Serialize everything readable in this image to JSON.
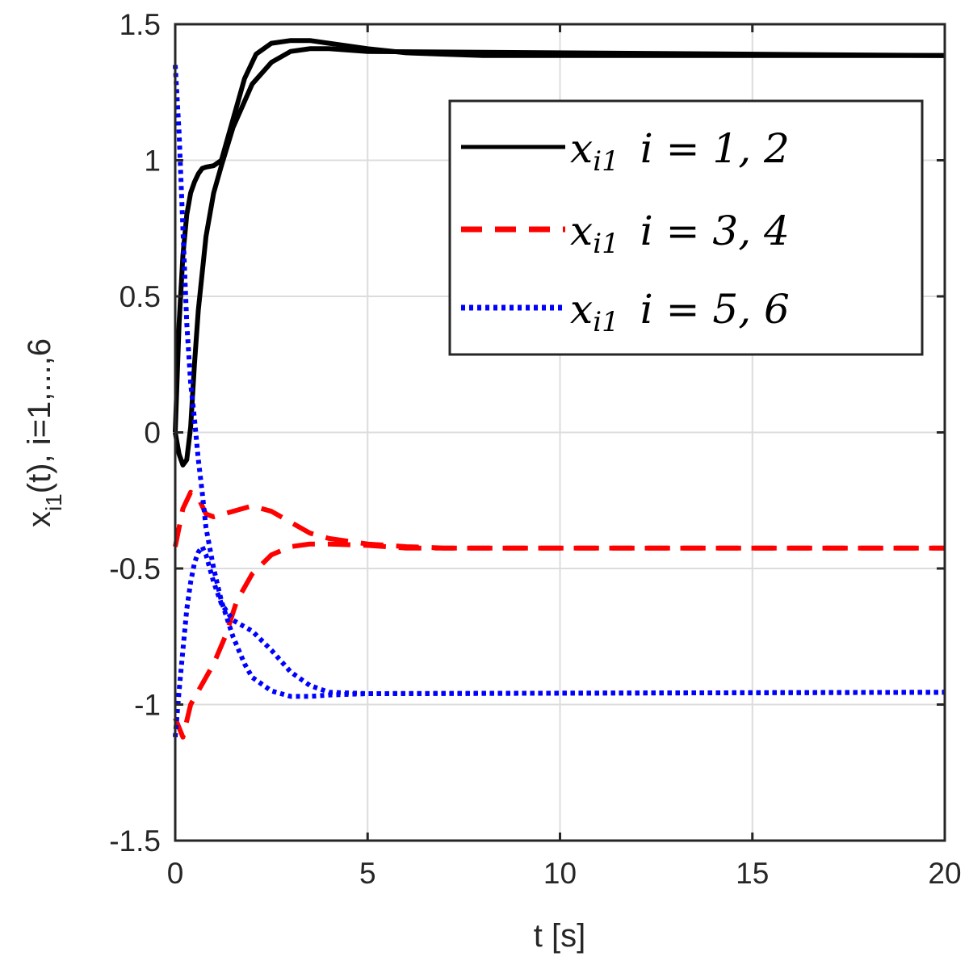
{
  "chart_data": {
    "type": "line",
    "title": "",
    "xlabel": "t [s]",
    "ylabel_main": "x",
    "ylabel_sub": "i1",
    "ylabel_rest": "(t), i=1,...,6",
    "xlim": [
      0,
      20
    ],
    "ylim": [
      -1.5,
      1.5
    ],
    "xticks": [
      0,
      5,
      10,
      15,
      20
    ],
    "xtick_labels": [
      "0",
      "5",
      "10",
      "15",
      "20"
    ],
    "yticks": [
      -1.5,
      -1,
      -0.5,
      0,
      0.5,
      1,
      1.5
    ],
    "ytick_labels": [
      "-1.5",
      "-1",
      "-0.5",
      "0",
      "0.5",
      "1",
      "1.5"
    ],
    "grid": true,
    "legend_position": "top-right",
    "legend": [
      {
        "var": "x",
        "sub": "i1",
        "label_rest": "i = 1, 2",
        "color": "#000000",
        "style": "solid"
      },
      {
        "var": "x",
        "sub": "i1",
        "label_rest": "i = 3, 4",
        "color": "#ff0000",
        "style": "dashed"
      },
      {
        "var": "x",
        "sub": "i1",
        "label_rest": "i = 5, 6",
        "color": "#0000ff",
        "style": "dotted"
      }
    ],
    "series": [
      {
        "group": 0,
        "color": "#000000",
        "style": "solid",
        "x": [
          0,
          0.1,
          0.2,
          0.3,
          0.4,
          0.5,
          0.6,
          0.7,
          0.8,
          1.0,
          1.2,
          1.5,
          1.8,
          2.1,
          2.5,
          3.0,
          3.5,
          4.0,
          5.0,
          6.0,
          7.0,
          8.0,
          10.0,
          20.0
        ],
        "y": [
          0,
          0.4,
          0.65,
          0.8,
          0.88,
          0.92,
          0.95,
          0.97,
          0.975,
          0.98,
          1.0,
          1.15,
          1.3,
          1.39,
          1.43,
          1.44,
          1.44,
          1.43,
          1.41,
          1.395,
          1.39,
          1.385,
          1.385,
          1.385
        ]
      },
      {
        "group": 0,
        "color": "#000000",
        "style": "solid",
        "x": [
          0,
          0.1,
          0.2,
          0.3,
          0.4,
          0.5,
          0.6,
          0.8,
          1.0,
          1.2,
          1.5,
          2.0,
          2.5,
          3.0,
          3.5,
          4.0,
          5.0,
          20.0
        ],
        "y": [
          0,
          -0.08,
          -0.12,
          -0.1,
          0.02,
          0.25,
          0.45,
          0.72,
          0.88,
          0.98,
          1.12,
          1.28,
          1.36,
          1.4,
          1.41,
          1.41,
          1.4,
          1.385
        ]
      },
      {
        "group": 1,
        "color": "#ff0000",
        "style": "dashed",
        "x": [
          0,
          0.2,
          0.4,
          0.6,
          0.8,
          1.0,
          1.5,
          2.0,
          2.5,
          3.0,
          3.5,
          4.0,
          5.0,
          6.0,
          7.0,
          8.0,
          20.0
        ],
        "y": [
          -0.42,
          -0.28,
          -0.22,
          -0.24,
          -0.3,
          -0.31,
          -0.29,
          -0.27,
          -0.29,
          -0.33,
          -0.37,
          -0.39,
          -0.41,
          -0.42,
          -0.425,
          -0.425,
          -0.425
        ]
      },
      {
        "group": 1,
        "color": "#ff0000",
        "style": "dashed",
        "x": [
          0,
          0.2,
          0.4,
          0.6,
          0.8,
          1.0,
          1.3,
          1.6,
          2.0,
          2.5,
          3.0,
          3.5,
          4.0,
          5.0,
          6.0,
          20.0
        ],
        "y": [
          -1.05,
          -1.12,
          -1.0,
          -0.95,
          -0.9,
          -0.85,
          -0.75,
          -0.62,
          -0.52,
          -0.45,
          -0.42,
          -0.41,
          -0.41,
          -0.415,
          -0.425,
          -0.425
        ]
      },
      {
        "group": 2,
        "color": "#0000ff",
        "style": "dotted",
        "x": [
          0,
          0.1,
          0.2,
          0.3,
          0.4,
          0.5,
          0.6,
          0.7,
          0.8,
          1.0,
          1.2,
          1.5,
          1.8,
          2.0,
          2.5,
          3.0,
          3.5,
          4.0,
          5.0,
          20.0
        ],
        "y": [
          1.35,
          1.1,
          0.75,
          0.4,
          0.18,
          0.05,
          -0.1,
          -0.22,
          -0.35,
          -0.5,
          -0.62,
          -0.75,
          -0.85,
          -0.9,
          -0.95,
          -0.97,
          -0.97,
          -0.965,
          -0.96,
          -0.955
        ]
      },
      {
        "group": 2,
        "color": "#0000ff",
        "style": "dotted",
        "x": [
          0,
          0.1,
          0.2,
          0.3,
          0.4,
          0.5,
          0.6,
          0.7,
          0.8,
          1.0,
          1.2,
          1.5,
          2.0,
          2.5,
          3.0,
          3.5,
          4.0,
          5.0,
          20.0
        ],
        "y": [
          -1.12,
          -0.95,
          -0.8,
          -0.65,
          -0.55,
          -0.48,
          -0.44,
          -0.42,
          -0.45,
          -0.55,
          -0.63,
          -0.69,
          -0.73,
          -0.8,
          -0.88,
          -0.93,
          -0.955,
          -0.96,
          -0.955
        ]
      }
    ]
  }
}
